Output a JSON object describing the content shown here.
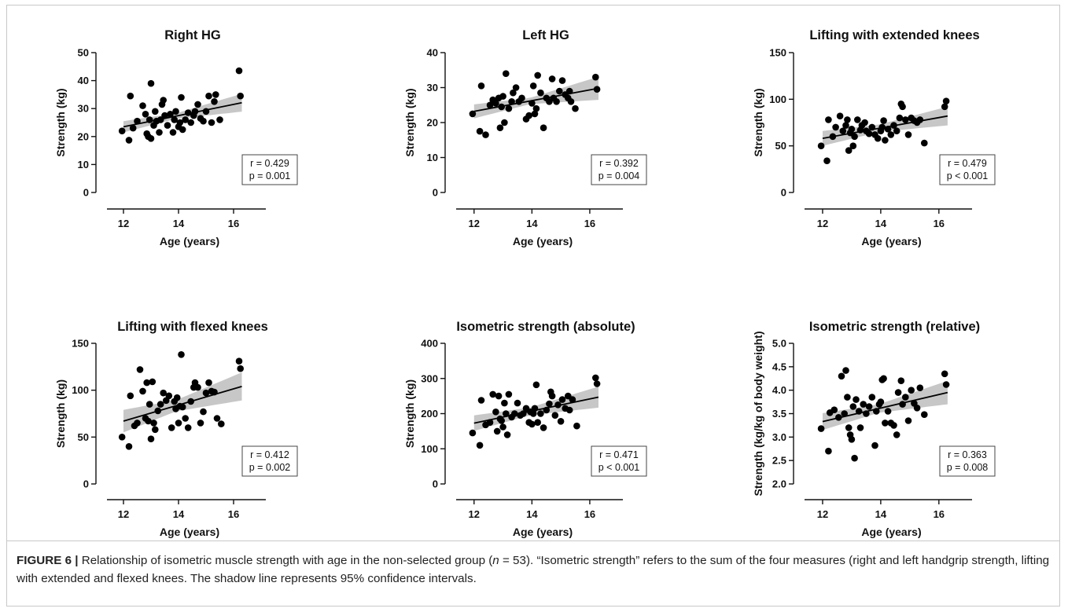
{
  "chart_data": [
    {
      "type": "scatter",
      "title": "Right HG",
      "xlabel": "Age (years)",
      "ylabel": "Strength (kg)",
      "xlim": [
        11,
        16.6
      ],
      "xticks": [
        12,
        14,
        16
      ],
      "ylim": [
        0,
        50
      ],
      "yticks": [
        0,
        10,
        20,
        30,
        40,
        50
      ],
      "stats": [
        "r = 0.429",
        "p = 0.001"
      ],
      "regression": {
        "x0": 12,
        "y0": 23.5,
        "x1": 16.3,
        "y1": 32.1,
        "ci_start": 2.0,
        "ci_mid": 1.0,
        "ci_end": 3.2
      },
      "points": [
        [
          11.95,
          22
        ],
        [
          12.2,
          18.7
        ],
        [
          12.25,
          34.5
        ],
        [
          12.35,
          23
        ],
        [
          12.5,
          25.5
        ],
        [
          12.7,
          31
        ],
        [
          12.8,
          28
        ],
        [
          12.85,
          21
        ],
        [
          12.9,
          20
        ],
        [
          12.95,
          26
        ],
        [
          13,
          39
        ],
        [
          13,
          19.3
        ],
        [
          13.1,
          24
        ],
        [
          13.15,
          29
        ],
        [
          13.2,
          25.5
        ],
        [
          13.3,
          21.5
        ],
        [
          13.35,
          26
        ],
        [
          13.4,
          31.5
        ],
        [
          13.45,
          33
        ],
        [
          13.5,
          27.5
        ],
        [
          13.6,
          24
        ],
        [
          13.7,
          28
        ],
        [
          13.8,
          21.5
        ],
        [
          13.85,
          26
        ],
        [
          13.9,
          29
        ],
        [
          14,
          23.5
        ],
        [
          14.05,
          25
        ],
        [
          14.1,
          34
        ],
        [
          14.15,
          22.5
        ],
        [
          14.25,
          26
        ],
        [
          14.35,
          28.5
        ],
        [
          14.45,
          25
        ],
        [
          14.55,
          27.5
        ],
        [
          14.6,
          29
        ],
        [
          14.7,
          31.5
        ],
        [
          14.8,
          26.5
        ],
        [
          14.9,
          25.5
        ],
        [
          15,
          29
        ],
        [
          15.1,
          34.5
        ],
        [
          15.2,
          25
        ],
        [
          15.3,
          32.5
        ],
        [
          15.35,
          35
        ],
        [
          15.5,
          26
        ],
        [
          16.2,
          43.5
        ],
        [
          16.25,
          34.5
        ]
      ]
    },
    {
      "type": "scatter",
      "title": "Left HG",
      "xlabel": "Age (years)",
      "ylabel": "Strength (kg)",
      "xlim": [
        11,
        16.6
      ],
      "xticks": [
        12,
        14,
        16
      ],
      "ylim": [
        0,
        40
      ],
      "yticks": [
        0,
        10,
        20,
        30,
        40
      ],
      "stats": [
        "r = 0.392",
        "p = 0.004"
      ],
      "regression": {
        "x0": 12,
        "y0": 23.2,
        "x1": 16.3,
        "y1": 29.8,
        "ci_start": 2.0,
        "ci_mid": 0.9,
        "ci_end": 3.3
      },
      "points": [
        [
          11.95,
          22.5
        ],
        [
          12.2,
          17.5
        ],
        [
          12.25,
          30.5
        ],
        [
          12.4,
          16.5
        ],
        [
          12.55,
          25
        ],
        [
          12.65,
          26.5
        ],
        [
          12.75,
          25.5
        ],
        [
          12.85,
          27
        ],
        [
          12.9,
          18.5
        ],
        [
          12.95,
          24.5
        ],
        [
          13,
          27.5
        ],
        [
          13.05,
          20
        ],
        [
          13.1,
          34
        ],
        [
          13.2,
          24
        ],
        [
          13.3,
          26
        ],
        [
          13.35,
          28.5
        ],
        [
          13.45,
          30
        ],
        [
          13.55,
          26
        ],
        [
          13.65,
          27
        ],
        [
          13.8,
          21
        ],
        [
          13.9,
          22
        ],
        [
          14,
          25.5
        ],
        [
          14.05,
          30.5
        ],
        [
          14.1,
          22.5
        ],
        [
          14.15,
          24
        ],
        [
          14.2,
          33.5
        ],
        [
          14.3,
          28.5
        ],
        [
          14.4,
          18.5
        ],
        [
          14.5,
          27
        ],
        [
          14.6,
          26
        ],
        [
          14.7,
          32.5
        ],
        [
          14.75,
          27
        ],
        [
          14.85,
          26
        ],
        [
          14.95,
          29
        ],
        [
          15.05,
          32
        ],
        [
          15.15,
          28
        ],
        [
          15.25,
          27
        ],
        [
          15.3,
          29
        ],
        [
          15.35,
          26
        ],
        [
          15.5,
          24
        ],
        [
          16.2,
          33
        ],
        [
          16.25,
          29.5
        ]
      ]
    },
    {
      "type": "scatter",
      "title": "Lifting with extended knees",
      "xlabel": "Age (years)",
      "ylabel": "Strength (kg)",
      "xlim": [
        11,
        16.6
      ],
      "xticks": [
        12,
        14,
        16
      ],
      "ylim": [
        0,
        150
      ],
      "yticks": [
        0,
        50,
        100,
        150
      ],
      "stats": [
        "r = 0.479",
        "p < 0.001"
      ],
      "regression": {
        "x0": 12,
        "y0": 58,
        "x1": 16.3,
        "y1": 82,
        "ci_start": 8,
        "ci_mid": 4,
        "ci_end": 10
      },
      "points": [
        [
          11.95,
          50
        ],
        [
          12.15,
          34
        ],
        [
          12.2,
          78
        ],
        [
          12.35,
          60
        ],
        [
          12.45,
          70
        ],
        [
          12.6,
          82
        ],
        [
          12.7,
          66
        ],
        [
          12.8,
          72
        ],
        [
          12.85,
          78
        ],
        [
          12.9,
          45
        ],
        [
          12.95,
          64
        ],
        [
          13,
          68
        ],
        [
          13.05,
          50
        ],
        [
          13.1,
          60
        ],
        [
          13.2,
          78
        ],
        [
          13.3,
          67
        ],
        [
          13.35,
          72
        ],
        [
          13.45,
          75
        ],
        [
          13.5,
          66
        ],
        [
          13.6,
          63
        ],
        [
          13.7,
          70
        ],
        [
          13.8,
          62
        ],
        [
          13.9,
          58
        ],
        [
          14,
          66
        ],
        [
          14.05,
          70
        ],
        [
          14.1,
          77
        ],
        [
          14.15,
          56
        ],
        [
          14.25,
          68
        ],
        [
          14.35,
          62
        ],
        [
          14.45,
          72
        ],
        [
          14.55,
          66
        ],
        [
          14.65,
          80
        ],
        [
          14.7,
          95
        ],
        [
          14.75,
          92
        ],
        [
          14.85,
          78
        ],
        [
          14.95,
          62
        ],
        [
          15.05,
          80
        ],
        [
          15.15,
          77
        ],
        [
          15.25,
          75
        ],
        [
          15.35,
          78
        ],
        [
          15.5,
          53
        ],
        [
          16.2,
          92
        ],
        [
          16.25,
          98
        ]
      ]
    },
    {
      "type": "scatter",
      "title": "Lifting with flexed knees",
      "xlabel": "Age (years)",
      "ylabel": "Strength (kg)",
      "xlim": [
        11,
        16.6
      ],
      "xticks": [
        12,
        14,
        16
      ],
      "ylim": [
        0,
        150
      ],
      "yticks": [
        0,
        50,
        100,
        150
      ],
      "stats": [
        "r = 0.412",
        "p = 0.002"
      ],
      "regression": {
        "x0": 12,
        "y0": 67,
        "x1": 16.3,
        "y1": 104,
        "ci_start": 12,
        "ci_mid": 6,
        "ci_end": 15
      },
      "points": [
        [
          11.95,
          50
        ],
        [
          12.2,
          40
        ],
        [
          12.25,
          94
        ],
        [
          12.4,
          62
        ],
        [
          12.5,
          65
        ],
        [
          12.6,
          122
        ],
        [
          12.7,
          99
        ],
        [
          12.8,
          70
        ],
        [
          12.85,
          108
        ],
        [
          12.9,
          67
        ],
        [
          12.95,
          85
        ],
        [
          13,
          48
        ],
        [
          13.05,
          109
        ],
        [
          13.1,
          65
        ],
        [
          13.15,
          58
        ],
        [
          13.25,
          78
        ],
        [
          13.35,
          85
        ],
        [
          13.45,
          97
        ],
        [
          13.55,
          89
        ],
        [
          13.65,
          94
        ],
        [
          13.75,
          60
        ],
        [
          13.85,
          88
        ],
        [
          13.9,
          80
        ],
        [
          13.95,
          92
        ],
        [
          14,
          65
        ],
        [
          14.05,
          83
        ],
        [
          14.1,
          138
        ],
        [
          14.15,
          82
        ],
        [
          14.25,
          70
        ],
        [
          14.35,
          60
        ],
        [
          14.45,
          88
        ],
        [
          14.55,
          103
        ],
        [
          14.6,
          108
        ],
        [
          14.7,
          103
        ],
        [
          14.8,
          65
        ],
        [
          14.9,
          77
        ],
        [
          15,
          97
        ],
        [
          15.1,
          108
        ],
        [
          15.2,
          99
        ],
        [
          15.3,
          98
        ],
        [
          15.4,
          70
        ],
        [
          15.55,
          64
        ],
        [
          16.2,
          131
        ],
        [
          16.25,
          123
        ]
      ]
    },
    {
      "type": "scatter",
      "title": "Isometric strength (absolute)",
      "xlabel": "Age (years)",
      "ylabel": "Strength (kg)",
      "xlim": [
        11,
        16.6
      ],
      "xticks": [
        12,
        14,
        16
      ],
      "ylim": [
        0,
        400
      ],
      "yticks": [
        0,
        100,
        200,
        300,
        400
      ],
      "stats": [
        "r = 0.471",
        "p < 0.001"
      ],
      "regression": {
        "x0": 12,
        "y0": 173,
        "x1": 16.3,
        "y1": 247,
        "ci_start": 22,
        "ci_mid": 11,
        "ci_end": 30
      },
      "points": [
        [
          11.95,
          145
        ],
        [
          12.2,
          110
        ],
        [
          12.25,
          238
        ],
        [
          12.4,
          168
        ],
        [
          12.55,
          175
        ],
        [
          12.65,
          255
        ],
        [
          12.75,
          205
        ],
        [
          12.8,
          150
        ],
        [
          12.85,
          250
        ],
        [
          12.9,
          185
        ],
        [
          12.95,
          180
        ],
        [
          13,
          162
        ],
        [
          13.05,
          230
        ],
        [
          13.1,
          200
        ],
        [
          13.15,
          140
        ],
        [
          13.2,
          255
        ],
        [
          13.3,
          190
        ],
        [
          13.4,
          200
        ],
        [
          13.5,
          230
        ],
        [
          13.6,
          195
        ],
        [
          13.7,
          200
        ],
        [
          13.8,
          215
        ],
        [
          13.9,
          175
        ],
        [
          13.95,
          205
        ],
        [
          14,
          170
        ],
        [
          14.05,
          200
        ],
        [
          14.1,
          215
        ],
        [
          14.15,
          282
        ],
        [
          14.2,
          175
        ],
        [
          14.3,
          200
        ],
        [
          14.4,
          160
        ],
        [
          14.5,
          210
        ],
        [
          14.6,
          228
        ],
        [
          14.65,
          262
        ],
        [
          14.7,
          250
        ],
        [
          14.8,
          195
        ],
        [
          14.9,
          225
        ],
        [
          15,
          178
        ],
        [
          15.05,
          240
        ],
        [
          15.15,
          215
        ],
        [
          15.25,
          250
        ],
        [
          15.3,
          210
        ],
        [
          15.4,
          240
        ],
        [
          15.55,
          165
        ],
        [
          16.2,
          302
        ],
        [
          16.25,
          285
        ]
      ]
    },
    {
      "type": "scatter",
      "title": "Isometric strength (relative)",
      "xlabel": "Age (years)",
      "ylabel": "Strength (kg/kg of body weight)",
      "xlim": [
        11,
        16.6
      ],
      "xticks": [
        12,
        14,
        16
      ],
      "ylim": [
        2.0,
        5.0
      ],
      "yticks": [
        2.0,
        2.5,
        3.0,
        3.5,
        4.0,
        4.5,
        5.0
      ],
      "stats": [
        "r = 0.363",
        "p = 0.008"
      ],
      "regression": {
        "x0": 12,
        "y0": 3.33,
        "x1": 16.3,
        "y1": 3.95,
        "ci_start": 0.18,
        "ci_mid": 0.09,
        "ci_end": 0.25
      },
      "points": [
        [
          11.95,
          3.18
        ],
        [
          12.2,
          2.7
        ],
        [
          12.25,
          3.52
        ],
        [
          12.4,
          3.58
        ],
        [
          12.55,
          3.42
        ],
        [
          12.65,
          4.3
        ],
        [
          12.75,
          3.5
        ],
        [
          12.8,
          4.42
        ],
        [
          12.85,
          3.85
        ],
        [
          12.9,
          3.2
        ],
        [
          12.95,
          3.05
        ],
        [
          13,
          2.95
        ],
        [
          13.05,
          3.65
        ],
        [
          13.1,
          2.55
        ],
        [
          13.15,
          3.8
        ],
        [
          13.25,
          3.55
        ],
        [
          13.3,
          3.2
        ],
        [
          13.4,
          3.7
        ],
        [
          13.5,
          3.5
        ],
        [
          13.6,
          3.65
        ],
        [
          13.7,
          3.85
        ],
        [
          13.8,
          2.82
        ],
        [
          13.85,
          3.55
        ],
        [
          13.95,
          3.7
        ],
        [
          14,
          3.75
        ],
        [
          14.05,
          4.22
        ],
        [
          14.1,
          4.25
        ],
        [
          14.15,
          3.3
        ],
        [
          14.25,
          3.55
        ],
        [
          14.35,
          3.3
        ],
        [
          14.45,
          3.25
        ],
        [
          14.55,
          3.05
        ],
        [
          14.6,
          3.95
        ],
        [
          14.7,
          4.2
        ],
        [
          14.75,
          3.7
        ],
        [
          14.85,
          3.85
        ],
        [
          14.95,
          3.35
        ],
        [
          15.05,
          4.0
        ],
        [
          15.15,
          3.72
        ],
        [
          15.25,
          3.62
        ],
        [
          15.35,
          4.05
        ],
        [
          15.5,
          3.48
        ],
        [
          16.2,
          4.35
        ],
        [
          16.25,
          4.12
        ]
      ]
    }
  ],
  "caption": {
    "label": "FIGURE 6 |",
    "text_a": " Relationship of isometric muscle strength with age in the non-selected group (",
    "n_symbol": "n",
    "text_b": " = 53). “Isometric strength” refers to the sum of the four measures (right and left handgrip strength, lifting with extended and flexed knees. The shadow line represents 95% confidence intervals."
  }
}
